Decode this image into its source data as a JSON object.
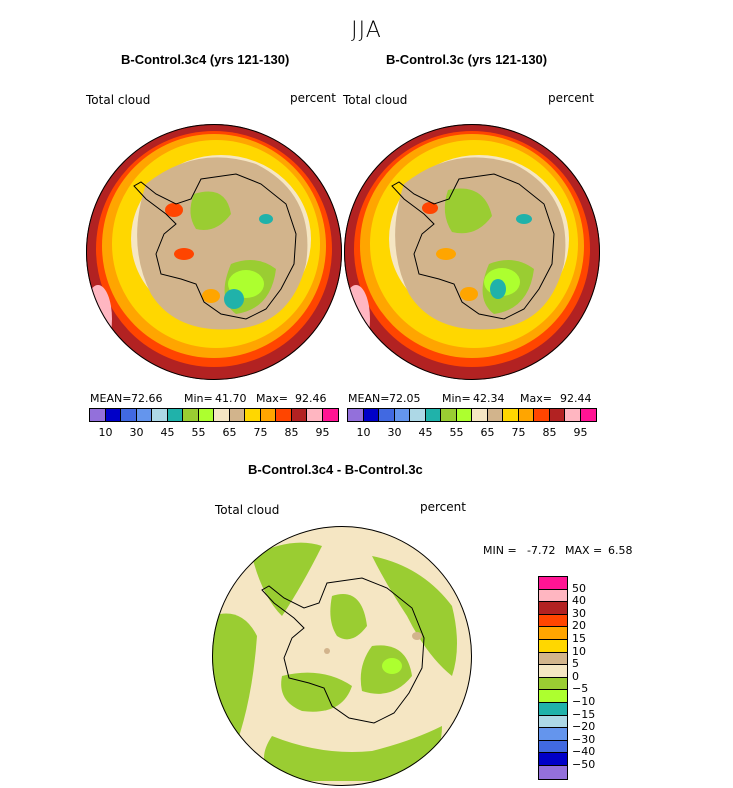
{
  "figure_title": "JJA",
  "palette": [
    "#9370db",
    "#0000c8",
    "#4169e1",
    "#6495ed",
    "#add8e6",
    "#20b2aa",
    "#9acd32",
    "#adff2f",
    "#f5e6c3",
    "#d2b48c",
    "#ffd700",
    "#ffa500",
    "#ff4500",
    "#b22222",
    "#ffb6c1",
    "#ff1493"
  ],
  "diff_palette": [
    "#ff1493",
    "#ffb6c1",
    "#b22222",
    "#ff4500",
    "#ffa500",
    "#ffd700",
    "#d2b48c",
    "#f5e6c3",
    "#9acd32",
    "#adff2f",
    "#20b2aa",
    "#add8e6",
    "#6495ed",
    "#4169e1",
    "#0000c8",
    "#9370db"
  ],
  "colors": {
    "land_outline": "#000000",
    "base_ocean": "#b22222"
  },
  "panels": [
    {
      "title": "B-Control.3c4 (yrs 121-130)",
      "field_label": "Total cloud",
      "units_label": "percent",
      "mean_label": "MEAN=",
      "mean": "72.66",
      "min_label": "Min=",
      "min": "41.70",
      "max_label": "Max=",
      "max": "92.46"
    },
    {
      "title": "B-Control.3c (yrs 121-130)",
      "field_label": "Total cloud",
      "units_label": "percent",
      "mean_label": "MEAN=",
      "mean": "72.05",
      "min_label": "Min=",
      "min": "42.34",
      "max_label": "Max=",
      "max": "92.44"
    }
  ],
  "diff_panel": {
    "title": "B-Control.3c4 - B-Control.3c",
    "field_label": "Total cloud",
    "units_label": "percent",
    "min_label": "MIN =",
    "min": "-7.72",
    "max_label": "MAX =",
    "max": "6.58"
  },
  "chart_data": [
    {
      "type": "heatmap",
      "title": "B-Control.3c4 (yrs 121-130)",
      "variable": "Total cloud",
      "units": "percent",
      "colorbar_ticks": [
        "10",
        "30",
        "45",
        "55",
        "65",
        "75",
        "85",
        "95"
      ],
      "stats": {
        "mean": 72.66,
        "min": 41.7,
        "max": 92.46
      }
    },
    {
      "type": "heatmap",
      "title": "B-Control.3c (yrs 121-130)",
      "variable": "Total cloud",
      "units": "percent",
      "colorbar_ticks": [
        "10",
        "30",
        "45",
        "55",
        "65",
        "75",
        "85",
        "95"
      ],
      "stats": {
        "mean": 72.05,
        "min": 42.34,
        "max": 92.44
      }
    },
    {
      "type": "heatmap",
      "title": "B-Control.3c4 - B-Control.3c",
      "variable": "Total cloud",
      "units": "percent",
      "colorbar_ticks": [
        "50",
        "40",
        "30",
        "20",
        "15",
        "10",
        "5",
        "0",
        "−5",
        "−10",
        "−15",
        "−20",
        "−30",
        "−40",
        "−50"
      ],
      "stats": {
        "min": -7.72,
        "max": 6.58
      }
    }
  ]
}
